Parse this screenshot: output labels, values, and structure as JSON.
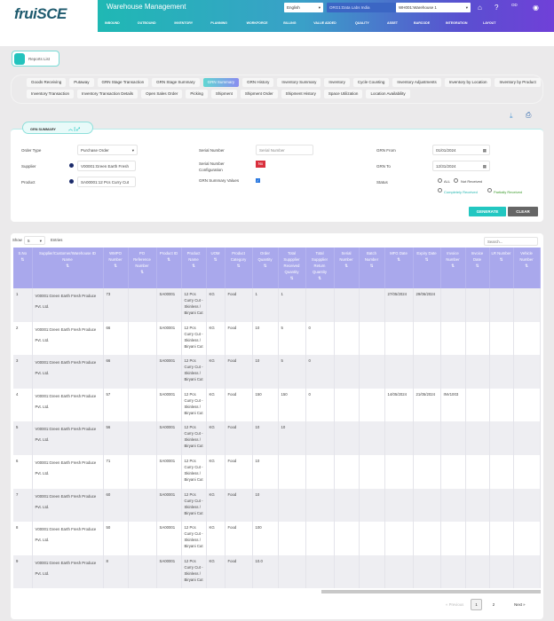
{
  "logo": "fruiSCE",
  "header": {
    "title": "Warehouse Management",
    "language": "English",
    "org": "ORG1:Data Labs India",
    "warehouse": "WH001:Warehouse 1",
    "user_initials": "OD",
    "nav": [
      "INBOUND",
      "OUTBOUND",
      "INVENTORY",
      "PLANNING",
      "WORKFORCE",
      "BILLING",
      "VALUE ADDED",
      "QUALITY",
      "ASSET",
      "BARCODE",
      "INTEGRATION",
      "LAYOUT"
    ]
  },
  "reports_list": "Reports List",
  "tabs": [
    "Goods Receiving",
    "Putaway",
    "GRN Stage Transaction",
    "GRN Stage Summary",
    "GRN Summary",
    "GRN History",
    "Inventory Summary",
    "Inventory",
    "Cycle Counting",
    "Inventory Adjustments",
    "Inventory by Location",
    "Inventory by Product",
    "Inventory Transaction",
    "Inventory Transaction Details",
    "Open Sales Order",
    "Picking",
    "Shipment",
    "Shipment Order",
    "Shipment History",
    "Space Utilization",
    "Location Availability"
  ],
  "active_tab": "GRN Summary",
  "filters": {
    "section": "GRN SUMMARY",
    "order_type_label": "Order Type",
    "order_type": "Purchase Order",
    "supplier_label": "Supplier",
    "supplier": "V00001:Green Earth Fresh",
    "product_label": "Product",
    "product": "SA00001:12 Pcs Curry Cut",
    "serial_label": "Serial Number",
    "serial_placeholder": "Serial Number",
    "serial_config_label": "Serial Number Configuration",
    "serial_config": "No",
    "summary_values_label": "GRN Summary Values",
    "summary_values_checked": true,
    "grn_from_label": "GRN From",
    "grn_from": "01/01/2024",
    "grn_to_label": "GRN To",
    "grn_to": "12/31/2024",
    "status_label": "Status",
    "status_all": "ALL",
    "status_not": "Not Received",
    "status_complete": "Completely Received",
    "status_partial": "Partially Received",
    "generate": "GENERATE",
    "clear": "CLEAR"
  },
  "colors": {
    "accent": "#22c7c1",
    "header_row": "#a9a8ec",
    "config_no": "#d9303d"
  },
  "table": {
    "show": "Show",
    "entries_value": "5",
    "entries": "Entries",
    "search_placeholder": "Search...",
    "columns": [
      "S.No",
      "Supplier/Customer/Warehouse ID Name",
      "WMPO Number",
      "PO Reference Number",
      "Product ID",
      "Product Name",
      "UOM",
      "Product Category",
      "Order Quantity",
      "Total Suppplier Received Quantity",
      "Total Suppplier Return Quantity",
      "Serial Number",
      "Batch Number",
      "MFG Date",
      "Expiry Date",
      "Invoice Number",
      "Invoice Date",
      "LR Number",
      "Vehicle Number"
    ],
    "rows": [
      [
        "1",
        "V00001:Green Earth Fresh Produce Pvt. Ltd.",
        "73",
        "",
        "SA00001",
        "12 Pcs Curry Cut - Skinless / Biryani Cut",
        "KG",
        "Food",
        "1",
        "1",
        "",
        "",
        "",
        "27/05/2024",
        "29/06/2024",
        "",
        "",
        "",
        ""
      ],
      [
        "2",
        "V00001:Green Earth Fresh Produce Pvt. Ltd.",
        "66",
        "",
        "SA00001",
        "12 Pcs Curry Cut - Skinless / Biryani Cut",
        "KG",
        "Food",
        "10",
        "5",
        "0",
        "",
        "",
        "",
        "",
        "",
        "",
        "",
        ""
      ],
      [
        "3",
        "V00001:Green Earth Fresh Produce Pvt. Ltd.",
        "66",
        "",
        "SA00001",
        "12 Pcs Curry Cut - Skinless / Biryani Cut",
        "KG",
        "Food",
        "10",
        "5",
        "0",
        "",
        "",
        "",
        "",
        "",
        "",
        "",
        ""
      ],
      [
        "4",
        "V00001:Green Earth Fresh Produce Pvt. Ltd.",
        "57",
        "",
        "SA00001",
        "12 Pcs Curry Cut - Skinless / Biryani Cut",
        "KG",
        "Food",
        "150",
        "150",
        "0",
        "",
        "",
        "14/05/2024",
        "21/05/2024",
        "INV1003",
        "",
        "",
        ""
      ],
      [
        "5",
        "V00001:Green Earth Fresh Produce Pvt. Ltd.",
        "56",
        "",
        "SA00001",
        "12 Pcs Curry Cut - Skinless / Biryani Cut",
        "KG",
        "Food",
        "10",
        "10",
        "",
        "",
        "",
        "",
        "",
        "",
        "",
        "",
        ""
      ],
      [
        "6",
        "V00001:Green Earth Fresh Produce Pvt. Ltd.",
        "71",
        "",
        "SA00001",
        "12 Pcs Curry Cut - Skinless / Biryani Cut",
        "KG",
        "Food",
        "10",
        "",
        "",
        "",
        "",
        "",
        "",
        "",
        "",
        "",
        ""
      ],
      [
        "7",
        "V00001:Green Earth Fresh Produce Pvt. Ltd.",
        "60",
        "",
        "SA00001",
        "12 Pcs Curry Cut - Skinless / Biryani Cut",
        "KG",
        "Food",
        "10",
        "",
        "",
        "",
        "",
        "",
        "",
        "",
        "",
        "",
        ""
      ],
      [
        "8",
        "V00001:Green Earth Fresh Produce Pvt. Ltd.",
        "50",
        "",
        "SA00001",
        "12 Pcs Curry Cut - Skinless / Biryani Cut",
        "KG",
        "Food",
        "100",
        "",
        "",
        "",
        "",
        "",
        "",
        "",
        "",
        "",
        ""
      ],
      [
        "9",
        "V00001:Green Earth Fresh Produce Pvt. Ltd.",
        "8",
        "",
        "SA00001",
        "12 Pcs Curry Cut - Skinless / Biryani Cut",
        "KG",
        "Food",
        "10.0",
        "",
        "",
        "",
        "",
        "",
        "",
        "",
        "",
        "",
        ""
      ]
    ]
  },
  "pagination": {
    "previous": "« Previous",
    "pages": [
      "1",
      "2"
    ],
    "current": "1",
    "next": "Next »"
  }
}
